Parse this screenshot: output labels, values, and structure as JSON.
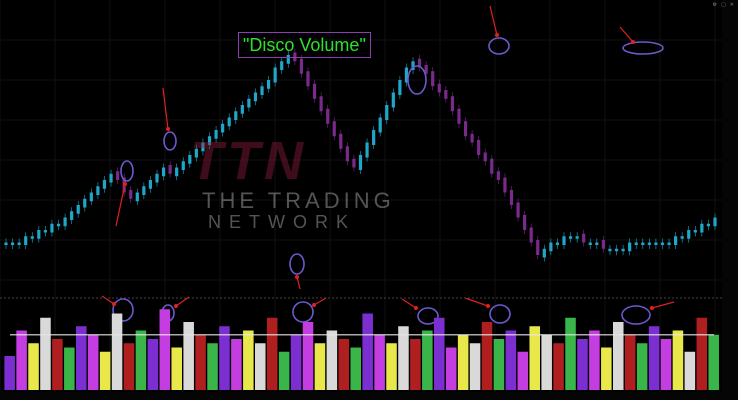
{
  "title_label": "\"Disco Volume\"",
  "logo": {
    "mark": "TTN",
    "line1": "THE TRADING",
    "line2": "NETWORK"
  },
  "colors": {
    "background": "#000000",
    "up_candle": "#1fa7c9",
    "down_candle": "#7a2a8a",
    "annotation": "#e02020",
    "ellipse": "#6a5acd",
    "title_text": "#2ce02c",
    "title_border": "#8b3fb3",
    "volume_bars": [
      "#7b2fd1",
      "#c43de0",
      "#e8e84a",
      "#d9d9d9",
      "#b01f1f",
      "#39b54a"
    ]
  },
  "window_icons": [
    "chart-settings-icon",
    "maximize-icon",
    "close-icon"
  ],
  "chart_data": [
    {
      "type": "candlestick",
      "title": "",
      "series": [
        {
          "name": "",
          "values": [
            6,
            6,
            6,
            7,
            7,
            8,
            8,
            9,
            9,
            10,
            11,
            12,
            13,
            14,
            15,
            16,
            17,
            16,
            14,
            13,
            14,
            15,
            16,
            17,
            18,
            17,
            18,
            19,
            20,
            21,
            22,
            23,
            24,
            25,
            26,
            27,
            28,
            29,
            30,
            31,
            32,
            34,
            35,
            36,
            35,
            33,
            31,
            29,
            27,
            25,
            23,
            21,
            19,
            18,
            20,
            22,
            24,
            26,
            28,
            30,
            32,
            34,
            35,
            34,
            33,
            31,
            30,
            29,
            27,
            25,
            23,
            22,
            20,
            19,
            17,
            16,
            14,
            12,
            10,
            8,
            6,
            4,
            5,
            6,
            6,
            7,
            7,
            7,
            6,
            6,
            6,
            5,
            5,
            5,
            5,
            6,
            6,
            6,
            6,
            6,
            6,
            6,
            7,
            7,
            8,
            8,
            9,
            9,
            10
          ]
        }
      ]
    },
    {
      "type": "bar",
      "title": "",
      "series": [
        {
          "name": "",
          "values": [
            40,
            70,
            55,
            85,
            60,
            50,
            75,
            65,
            45,
            90,
            55,
            70,
            60,
            95,
            50,
            80,
            65,
            55,
            75,
            60,
            70,
            55,
            85,
            45,
            65,
            80,
            55,
            70,
            60,
            50,
            90,
            65,
            55,
            75,
            60,
            70,
            85,
            50,
            65,
            55,
            80,
            60,
            70,
            45,
            75,
            65,
            55,
            85,
            60,
            70,
            50,
            80,
            65,
            55,
            75,
            60,
            70,
            45,
            85,
            65
          ]
        }
      ]
    }
  ]
}
